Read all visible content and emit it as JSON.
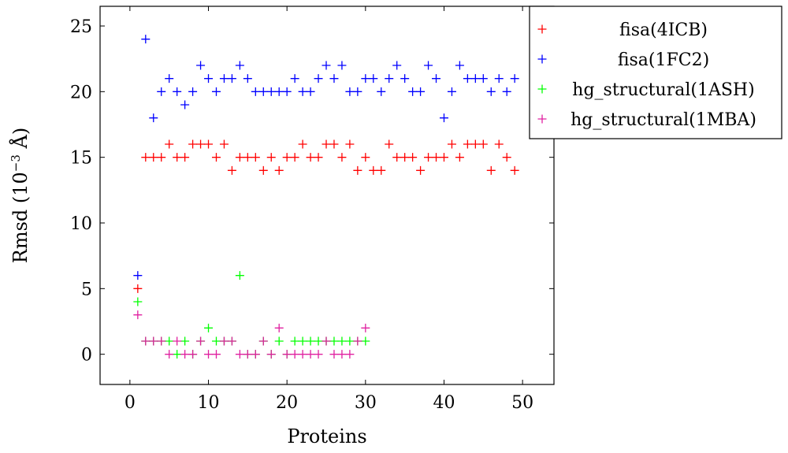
{
  "chart_data": {
    "type": "scatter",
    "marker": "plus",
    "xlabel": "Proteins",
    "ylabel": "Rmsd (10",
    "ylabel_exponent": "−3",
    "ylabel_unit": " Å)",
    "xlim": [
      -3.8,
      54
    ],
    "ylim": [
      -2.3,
      26.5
    ],
    "xticks": [
      0,
      10,
      20,
      30,
      40,
      50
    ],
    "yticks": [
      0,
      5,
      10,
      15,
      20,
      25
    ],
    "grid": false,
    "legend_position": "top-right-outside",
    "series": [
      {
        "name": "fisa(4ICB)",
        "color": "#ff0000",
        "x": [
          1,
          2,
          3,
          4,
          5,
          6,
          7,
          8,
          9,
          10,
          11,
          12,
          13,
          14,
          15,
          16,
          17,
          18,
          19,
          20,
          21,
          22,
          23,
          24,
          25,
          26,
          27,
          28,
          29,
          30,
          31,
          32,
          33,
          34,
          35,
          36,
          37,
          38,
          39,
          40,
          41,
          42,
          43,
          44,
          45,
          46,
          47,
          48,
          49
        ],
        "y": [
          5,
          15,
          15,
          15,
          16,
          15,
          15,
          16,
          16,
          16,
          15,
          16,
          14,
          15,
          15,
          15,
          14,
          15,
          14,
          15,
          15,
          16,
          15,
          15,
          16,
          16,
          15,
          16,
          14,
          15,
          14,
          14,
          16,
          15,
          15,
          15,
          14,
          15,
          15,
          15,
          16,
          15,
          16,
          16,
          16,
          14,
          16,
          15,
          14
        ]
      },
      {
        "name": "fisa(1FC2)",
        "color": "#0000ff",
        "x": [
          1,
          2,
          3,
          4,
          5,
          6,
          7,
          8,
          9,
          10,
          11,
          12,
          13,
          14,
          15,
          16,
          17,
          18,
          19,
          20,
          21,
          22,
          23,
          24,
          25,
          26,
          27,
          28,
          29,
          30,
          31,
          32,
          33,
          34,
          35,
          36,
          37,
          38,
          39,
          40,
          41,
          42,
          43,
          44,
          45,
          46,
          47,
          48,
          49
        ],
        "y": [
          6,
          24,
          18,
          20,
          21,
          20,
          19,
          20,
          22,
          21,
          20,
          21,
          21,
          22,
          21,
          20,
          20,
          20,
          20,
          20,
          21,
          20,
          20,
          21,
          22,
          21,
          22,
          20,
          20,
          21,
          21,
          20,
          21,
          22,
          21,
          20,
          20,
          22,
          21,
          18,
          20,
          22,
          21,
          21,
          21,
          20,
          21,
          20,
          21
        ]
      },
      {
        "name": "hg_structural(1ASH)",
        "color": "#00ff00",
        "x": [
          1,
          2,
          3,
          4,
          5,
          6,
          7,
          8,
          9,
          10,
          11,
          12,
          13,
          14,
          15,
          16,
          17,
          18,
          19,
          20,
          21,
          22,
          23,
          24,
          25,
          26,
          27,
          28,
          29,
          30
        ],
        "y": [
          4,
          1,
          1,
          1,
          1,
          0,
          1,
          0,
          1,
          2,
          1,
          1,
          1,
          6,
          0,
          0,
          1,
          0,
          1,
          0,
          1,
          1,
          1,
          1,
          1,
          1,
          1,
          1,
          1,
          1
        ]
      },
      {
        "name": "hg_structural(1MBA)",
        "color": "#e020a0",
        "x": [
          1,
          2,
          3,
          4,
          5,
          6,
          7,
          8,
          9,
          10,
          11,
          12,
          13,
          14,
          15,
          16,
          17,
          18,
          19,
          20,
          21,
          22,
          23,
          24,
          25,
          26,
          27,
          28,
          29,
          30
        ],
        "y": [
          3,
          1,
          1,
          1,
          0,
          1,
          0,
          0,
          1,
          0,
          0,
          1,
          1,
          0,
          0,
          0,
          1,
          0,
          2,
          0,
          0,
          0,
          0,
          0,
          1,
          0,
          0,
          0,
          1,
          2
        ]
      }
    ]
  }
}
